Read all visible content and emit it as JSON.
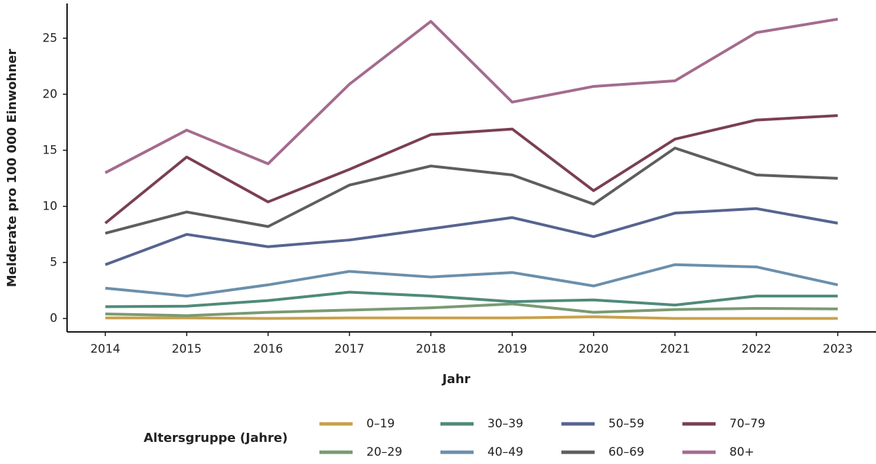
{
  "chart_data": {
    "type": "line",
    "x_label": "Jahr",
    "y_label": "Melderate pro 100 000 Einwohner",
    "legend_title": "Altersgruppe (Jahre)",
    "x": [
      2014,
      2015,
      2016,
      2017,
      2018,
      2019,
      2020,
      2021,
      2022,
      2023
    ],
    "xlim": [
      2013.53,
      2023.47
    ],
    "xticks": [
      2014,
      2015,
      2016,
      2017,
      2018,
      2019,
      2020,
      2021,
      2022,
      2023
    ],
    "ylim": [
      -1.2,
      28.1
    ],
    "yticks": [
      0,
      5,
      10,
      15,
      20,
      25
    ],
    "grid": false,
    "legend": "bottom",
    "series": [
      {
        "name": "0–19",
        "color": "#c9a04a",
        "values": [
          0.05,
          0.05,
          0,
          0.05,
          0.05,
          0.05,
          0.15,
          0,
          0,
          0
        ]
      },
      {
        "name": "20–29",
        "color": "#7a9a72",
        "values": [
          0.4,
          0.25,
          0.55,
          0.75,
          0.95,
          1.3,
          0.55,
          0.8,
          0.9,
          0.85
        ]
      },
      {
        "name": "30–39",
        "color": "#4f8a7a",
        "values": [
          1.05,
          1.1,
          1.6,
          2.35,
          2.0,
          1.5,
          1.65,
          1.2,
          2.0,
          2.0
        ]
      },
      {
        "name": "40–49",
        "color": "#6b8fab",
        "values": [
          2.7,
          2.0,
          3.0,
          4.2,
          3.7,
          4.1,
          2.9,
          4.8,
          4.6,
          3.0
        ]
      },
      {
        "name": "50–59",
        "color": "#56648f",
        "values": [
          4.8,
          7.5,
          6.4,
          7.0,
          8.0,
          9.0,
          7.3,
          9.4,
          9.8,
          8.5
        ]
      },
      {
        "name": "60–69",
        "color": "#5e5e5e",
        "values": [
          7.6,
          9.5,
          8.2,
          11.9,
          13.6,
          12.8,
          10.2,
          15.2,
          12.8,
          12.5
        ]
      },
      {
        "name": "70–79",
        "color": "#7a3f55",
        "values": [
          8.5,
          14.4,
          10.4,
          13.3,
          16.4,
          16.9,
          11.4,
          16.0,
          17.7,
          18.1
        ]
      },
      {
        "name": "80+",
        "color": "#a46b8e",
        "values": [
          13.0,
          16.8,
          13.8,
          20.9,
          26.5,
          19.3,
          20.7,
          21.2,
          25.5,
          26.7
        ]
      }
    ]
  }
}
